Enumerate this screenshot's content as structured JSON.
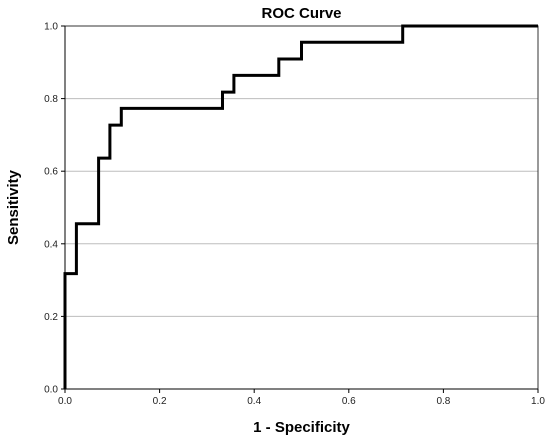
{
  "chart_data": {
    "type": "line",
    "title": "ROC Curve",
    "xlabel": "1 - Specificity",
    "ylabel": "Sensitivity",
    "xlim": [
      0,
      1
    ],
    "ylim": [
      0,
      1
    ],
    "grid": true,
    "line_color": "#000000",
    "x_ticks": [
      "0.0",
      "0.2",
      "0.4",
      "0.6",
      "0.8",
      "1.0"
    ],
    "y_ticks": [
      "0.0",
      "0.2",
      "0.4",
      "0.6",
      "0.8",
      "1.0"
    ],
    "series": [
      {
        "x": [
          0.0,
          0.0,
          0.024,
          0.024,
          0.071,
          0.071,
          0.095,
          0.095,
          0.119,
          0.119,
          0.333,
          0.333,
          0.357,
          0.357,
          0.452,
          0.452,
          0.5,
          0.5,
          0.714,
          0.714,
          1.0
        ],
        "y": [
          0.0,
          0.318,
          0.318,
          0.455,
          0.455,
          0.636,
          0.636,
          0.727,
          0.727,
          0.773,
          0.773,
          0.818,
          0.818,
          0.864,
          0.864,
          0.909,
          0.909,
          0.955,
          0.955,
          1.0,
          1.0
        ]
      }
    ]
  }
}
